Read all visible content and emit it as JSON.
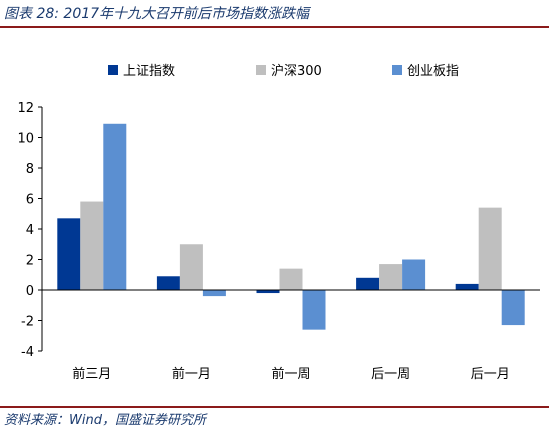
{
  "header": {
    "title": "图表 28: 2017年十九大召开前后市场指数涨跌幅"
  },
  "footer": {
    "source": "资料来源：Wind，国盛证券研究所"
  },
  "chart_data": {
    "type": "bar",
    "categories": [
      "前三月",
      "前一月",
      "前一周",
      "后一周",
      "后一月"
    ],
    "series": [
      {
        "name": "上证指数",
        "color": "#003893",
        "values": [
          4.7,
          0.9,
          -0.2,
          0.8,
          0.4
        ]
      },
      {
        "name": "沪深300",
        "color": "#bfbfbf",
        "values": [
          5.8,
          3.0,
          1.4,
          1.7,
          5.4
        ]
      },
      {
        "name": "创业板指",
        "color": "#5b8fd1",
        "values": [
          10.9,
          -0.4,
          -2.6,
          2.0,
          -2.3
        ]
      }
    ],
    "ylim": [
      -4,
      12
    ],
    "yticks": [
      -4,
      -2,
      0,
      2,
      4,
      6,
      8,
      10,
      12
    ],
    "legend": "top",
    "grid": false
  }
}
